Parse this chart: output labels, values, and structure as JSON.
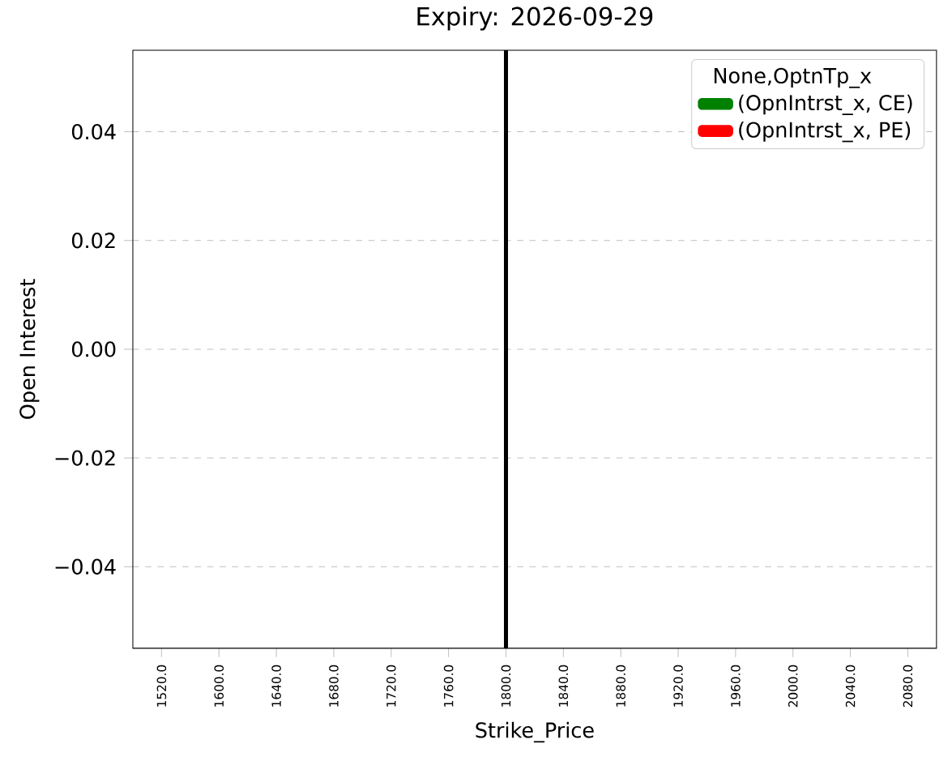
{
  "chart_data": {
    "type": "bar",
    "title": "Expiry: 2026-09-29",
    "xlabel": "Strike_Price",
    "ylabel": "Open Interest",
    "legend_title": "None,OptnTp_x",
    "categories": [
      "1520.0",
      "1600.0",
      "1640.0",
      "1680.0",
      "1720.0",
      "1760.0",
      "1800.0",
      "1840.0",
      "1880.0",
      "1920.0",
      "1960.0",
      "2000.0",
      "2040.0",
      "2080.0"
    ],
    "series": [
      {
        "name": "(OpnIntrst_x, CE)",
        "color": "#008000",
        "values": [
          0,
          0,
          0,
          0,
          0,
          0,
          0,
          0,
          0,
          0,
          0,
          0,
          0,
          0
        ]
      },
      {
        "name": "(OpnIntrst_x, PE)",
        "color": "#ff0000",
        "values": [
          0,
          0,
          0,
          0,
          0,
          0,
          0,
          0,
          0,
          0,
          0,
          0,
          0,
          0
        ]
      }
    ],
    "ylim": [
      -0.055,
      0.055
    ],
    "yticks": [
      {
        "value": -0.04,
        "label": "−0.04"
      },
      {
        "value": -0.02,
        "label": "−0.02"
      },
      {
        "value": 0,
        "label": "0.00"
      },
      {
        "value": 0.02,
        "label": "0.02"
      },
      {
        "value": 0.04,
        "label": "0.04"
      }
    ],
    "ref_lines": [
      {
        "axis": "x",
        "value": "1800.0",
        "color": "#000000"
      }
    ],
    "grid": "y",
    "legend": "top right"
  }
}
